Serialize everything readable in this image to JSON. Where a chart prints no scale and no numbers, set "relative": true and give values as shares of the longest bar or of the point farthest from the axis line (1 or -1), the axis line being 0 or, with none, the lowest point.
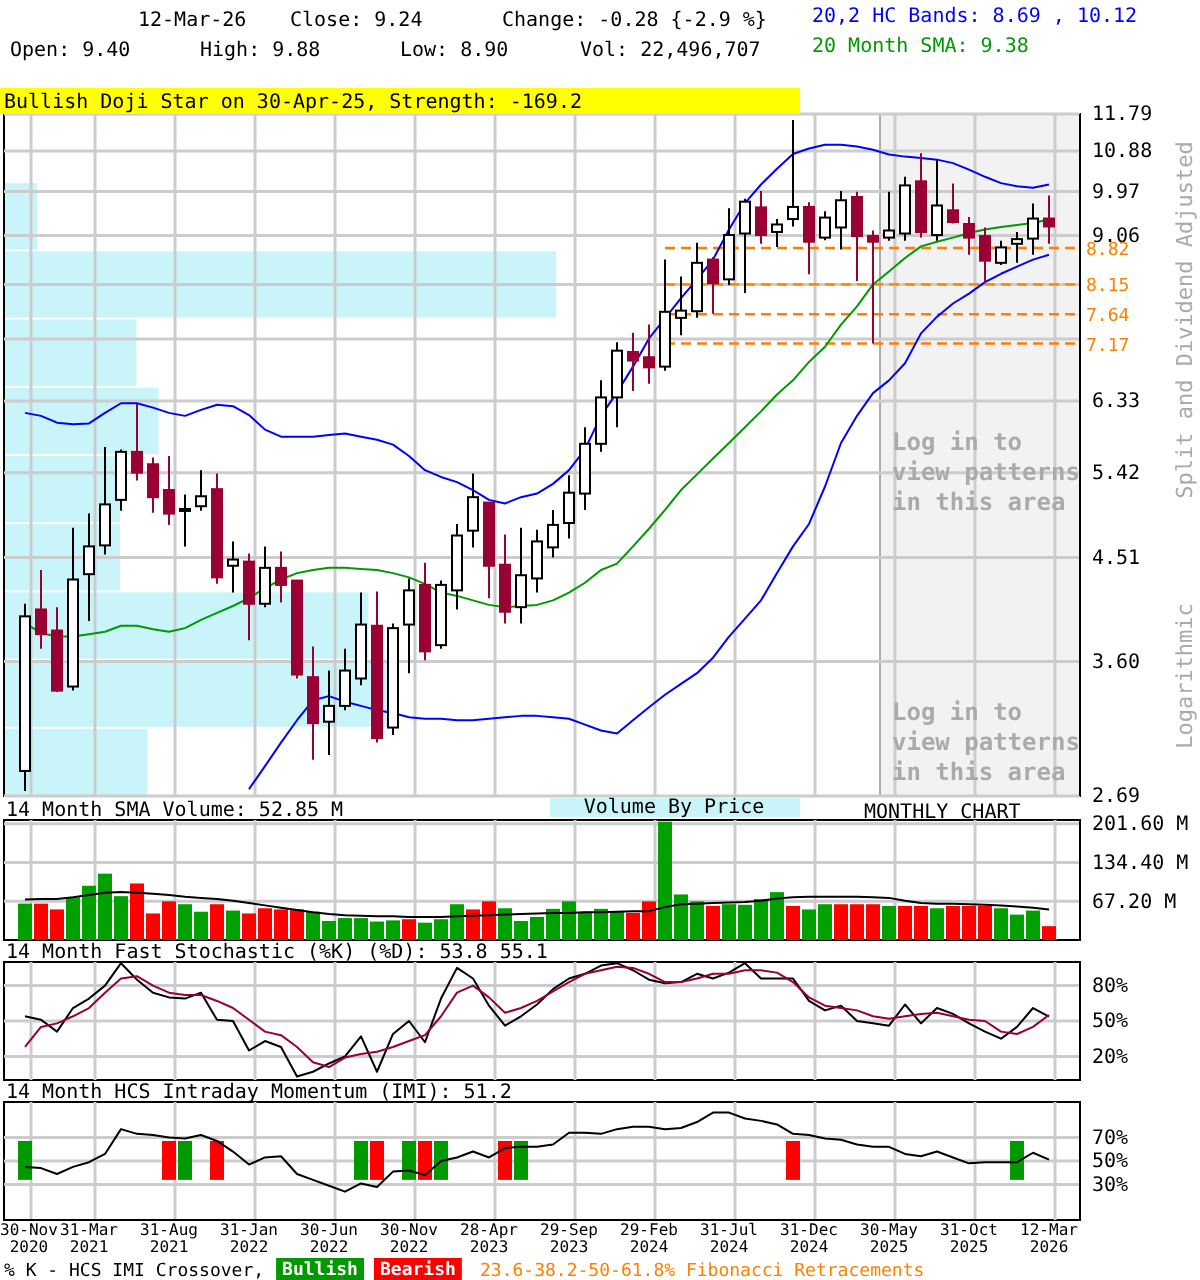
{
  "chart_data": [
    {
      "type": "candlestick",
      "log": true,
      "grid": true,
      "tick_labels": "y",
      "categories": [
        null,
        null,
        null,
        null,
        null,
        null,
        null,
        null,
        null,
        null,
        null,
        null,
        null,
        null,
        null,
        null,
        null,
        null,
        null,
        null,
        null,
        null,
        null,
        null,
        null,
        null,
        null,
        null,
        null,
        null,
        null,
        null,
        null,
        null,
        null,
        null,
        null,
        null,
        null,
        null,
        null,
        null,
        null,
        null,
        null,
        null,
        null,
        null,
        null,
        null,
        null,
        null,
        null,
        null,
        null,
        null,
        null,
        null,
        null,
        null,
        null,
        null,
        null,
        null,
        null
      ],
      "ylim": [
        2.69,
        11.79
      ],
      "yticks": [
        2.69,
        {
          "value": 3.6,
          "label": "3.60"
        },
        4.51,
        5.42,
        6.33,
        9.06,
        9.97,
        10.88,
        11.79,
        {
          "value": 8.15,
          "label": null
        },
        {
          "value": 7.24,
          "label": null
        }
      ],
      "ohlc": [
        [
          2.84,
          4.08,
          2.72,
          3.97
        ],
        [
          4.03,
          4.39,
          3.7,
          3.82
        ],
        [
          3.85,
          4.05,
          3.37,
          3.38
        ],
        [
          3.41,
          4.81,
          3.38,
          4.3
        ],
        [
          4.35,
          4.96,
          3.93,
          4.62
        ],
        [
          4.63,
          5.73,
          4.54,
          5.06
        ],
        [
          5.11,
          5.7,
          4.99,
          5.67
        ],
        [
          5.67,
          6.29,
          5.33,
          5.42
        ],
        [
          5.52,
          5.6,
          4.97,
          5.14
        ],
        [
          5.22,
          5.62,
          4.84,
          4.96
        ],
        [
          4.99,
          5.17,
          4.62,
          5.01
        ],
        [
          5.04,
          5.45,
          4.99,
          5.15
        ],
        [
          5.23,
          5.41,
          4.26,
          4.32
        ],
        [
          4.43,
          4.67,
          4.18,
          4.49
        ],
        [
          4.47,
          4.55,
          3.77,
          4.08
        ],
        [
          4.08,
          4.62,
          4.05,
          4.41
        ],
        [
          4.41,
          4.57,
          4.09,
          4.25
        ],
        [
          4.29,
          4.29,
          3.47,
          3.5
        ],
        [
          3.48,
          3.72,
          2.91,
          3.15
        ],
        [
          3.16,
          3.53,
          2.94,
          3.27
        ],
        [
          3.27,
          3.7,
          3.24,
          3.53
        ],
        [
          3.47,
          4.18,
          3.42,
          3.9
        ],
        [
          3.89,
          4.19,
          3.02,
          3.05
        ],
        [
          3.12,
          3.91,
          3.07,
          3.87
        ],
        [
          3.9,
          4.31,
          3.51,
          4.2
        ],
        [
          4.25,
          4.46,
          3.61,
          3.68
        ],
        [
          3.73,
          4.29,
          3.7,
          4.25
        ],
        [
          4.2,
          4.85,
          4.03,
          4.73
        ],
        [
          4.78,
          5.41,
          4.61,
          5.14
        ],
        [
          5.08,
          5.08,
          4.13,
          4.43
        ],
        [
          4.44,
          4.74,
          3.91,
          4.01
        ],
        [
          4.05,
          4.81,
          3.91,
          4.34
        ],
        [
          4.31,
          4.79,
          4.18,
          4.67
        ],
        [
          4.61,
          5.0,
          4.51,
          4.84
        ],
        [
          4.86,
          5.39,
          4.7,
          5.19
        ],
        [
          5.18,
          5.98,
          5.0,
          5.77
        ],
        [
          5.77,
          6.62,
          5.67,
          6.38
        ],
        [
          6.38,
          7.19,
          5.98,
          7.06
        ],
        [
          7.04,
          7.34,
          6.47,
          6.91
        ],
        [
          6.96,
          7.47,
          6.57,
          6.81
        ],
        [
          6.82,
          8.6,
          6.76,
          7.68
        ],
        [
          7.58,
          8.29,
          7.3,
          7.7
        ],
        [
          7.69,
          8.92,
          7.58,
          8.54
        ],
        [
          8.6,
          8.65,
          7.65,
          8.17
        ],
        [
          8.24,
          9.61,
          8.14,
          9.07
        ],
        [
          9.1,
          9.81,
          8.0,
          9.75
        ],
        [
          9.63,
          9.98,
          8.9,
          9.07
        ],
        [
          9.13,
          9.39,
          8.84,
          9.28
        ],
        [
          9.39,
          11.64,
          9.24,
          9.64
        ],
        [
          9.64,
          9.74,
          8.33,
          8.94
        ],
        [
          9.02,
          9.55,
          8.97,
          9.42
        ],
        [
          9.22,
          9.98,
          8.79,
          9.78
        ],
        [
          9.85,
          9.96,
          8.21,
          9.05
        ],
        [
          9.05,
          9.16,
          7.17,
          8.94
        ],
        [
          9.02,
          9.96,
          8.96,
          9.16
        ],
        [
          9.1,
          10.29,
          8.96,
          10.1
        ],
        [
          10.19,
          10.83,
          9.02,
          9.13
        ],
        [
          9.07,
          10.67,
          8.96,
          9.67
        ],
        [
          9.57,
          10.14,
          9.3,
          9.33
        ],
        [
          9.29,
          9.43,
          8.69,
          9.02
        ],
        [
          9.05,
          9.22,
          8.18,
          8.58
        ],
        [
          8.54,
          8.96,
          8.5,
          8.83
        ],
        [
          8.9,
          9.13,
          8.54,
          8.99
        ],
        [
          9.0,
          9.71,
          8.69,
          9.4
        ],
        [
          9.4,
          9.88,
          8.9,
          9.24
        ]
      ],
      "series": [
        {
          "type": "line",
          "color": "#0000ff",
          "values": [
            6.17,
            6.13,
            6.04,
            6.02,
            6.03,
            6.17,
            6.3,
            6.3,
            6.24,
            6.17,
            6.13,
            6.21,
            6.28,
            6.26,
            6.14,
            5.95,
            5.86,
            5.86,
            5.86,
            5.88,
            5.9,
            5.86,
            5.82,
            5.76,
            5.62,
            5.45,
            5.37,
            5.31,
            5.22,
            5.11,
            5.07,
            5.14,
            5.18,
            5.29,
            5.45,
            5.7,
            6.13,
            6.45,
            6.82,
            7.25,
            7.57,
            7.91,
            8.24,
            8.6,
            9.18,
            9.72,
            10.12,
            10.47,
            10.81,
            10.94,
            11.03,
            11.03,
            10.99,
            10.91,
            10.8,
            10.75,
            10.72,
            10.68,
            10.6,
            10.45,
            10.29,
            10.15,
            10.08,
            10.05,
            10.12
          ]
        },
        {
          "type": "line",
          "color": "#0000ff",
          "values": [
            null,
            null,
            null,
            null,
            null,
            null,
            null,
            null,
            null,
            null,
            null,
            null,
            null,
            null,
            2.73,
            2.87,
            3.02,
            3.17,
            3.31,
            3.34,
            3.3,
            3.27,
            3.24,
            3.22,
            3.19,
            3.18,
            3.18,
            3.17,
            3.17,
            3.18,
            3.19,
            3.2,
            3.2,
            3.19,
            3.18,
            3.14,
            3.1,
            3.08,
            3.17,
            3.26,
            3.35,
            3.43,
            3.51,
            3.63,
            3.8,
            3.95,
            4.11,
            4.36,
            4.62,
            4.85,
            5.26,
            5.78,
            6.13,
            6.44,
            6.62,
            6.87,
            7.33,
            7.6,
            7.82,
            7.99,
            8.19,
            8.34,
            8.47,
            8.6,
            8.69
          ]
        },
        {
          "type": "line",
          "color": "#009900",
          "values": [
            3.91,
            3.83,
            3.8,
            3.8,
            3.82,
            3.84,
            3.89,
            3.89,
            3.86,
            3.84,
            3.87,
            3.94,
            4.0,
            4.06,
            4.13,
            4.22,
            4.3,
            4.36,
            4.39,
            4.41,
            4.41,
            4.4,
            4.39,
            4.36,
            4.32,
            4.26,
            4.18,
            4.15,
            4.11,
            4.07,
            4.05,
            4.06,
            4.07,
            4.11,
            4.18,
            4.27,
            4.39,
            4.45,
            4.62,
            4.8,
            5.0,
            5.22,
            5.4,
            5.59,
            5.78,
            5.98,
            6.19,
            6.42,
            6.62,
            6.89,
            7.12,
            7.47,
            7.77,
            8.15,
            8.38,
            8.63,
            8.85,
            8.94,
            9.02,
            9.11,
            9.18,
            9.23,
            9.27,
            9.31,
            9.38
          ]
        }
      ],
      "ref_lines": [
        {
          "axis": "y",
          "value": 8.82,
          "label": "8.82",
          "color": "#ff8000",
          "line_style": "dashed"
        },
        {
          "axis": "y",
          "value": 8.15,
          "label": "8.15",
          "color": "#ff8000",
          "line_style": "dashed"
        },
        {
          "axis": "y",
          "value": 7.64,
          "label": "7.64",
          "color": "#ff8000",
          "line_style": "dashed"
        },
        {
          "axis": "y",
          "value": 7.17,
          "label": "7.17",
          "color": "#ff8000",
          "line_style": "dashed"
        }
      ],
      "annotations": [
        "12-Mar-26",
        "Close: 9.24",
        "Change: -0.28 {-2.9 %}",
        "Open: 9.40",
        "High: 9.88",
        "Low: 8.90",
        "Vol: 22,496,707",
        "20,2 HC Bands: 8.69 , 10.12",
        "20 Month SMA: 9.38",
        "Bullish Doji Star on 30-Apr-25, Strength: -169.2",
        "Log in to view patterns in this area",
        "Log in to view patterns in this area",
        "Split and Dividend Adjusted",
        "Logarithmic",
        "MONTHLY CHART",
        "23.6-38.2-50-61.8% Fibonacci Retracements",
        "Volume By Price"
      ]
    },
    {
      "type": "bar",
      "orientation": "horizontal",
      "relative": true,
      "color": "#c8f4fa",
      "categories": [
        null,
        null,
        null,
        null,
        null,
        null,
        null,
        null,
        null
      ],
      "values": [
        0.06,
        1,
        0.24,
        0.28,
        0.21,
        0.21,
        0.66,
        0.7,
        0.26
      ]
    },
    {
      "type": "bar",
      "title": "14 Month SMA Volume: 52.85 M",
      "grid": true,
      "tick_labels": "y",
      "categories": [
        null,
        null,
        null,
        null,
        null,
        null,
        null,
        null,
        null,
        null,
        null,
        null,
        null,
        null,
        null,
        null,
        null,
        null,
        null,
        null,
        null,
        null,
        null,
        null,
        null,
        null,
        null,
        null,
        null,
        null,
        null,
        null,
        null,
        null,
        null,
        null,
        null,
        null,
        null,
        null,
        null,
        null,
        null,
        null,
        null,
        null,
        null,
        null,
        null,
        null,
        null,
        null,
        null,
        null,
        null,
        null,
        null,
        null,
        null,
        null,
        null,
        null,
        null,
        null,
        null
      ],
      "ylim": [
        0,
        208
      ],
      "yticks": [
        {
          "value": 67.2,
          "label": "67.20 M"
        },
        {
          "value": 134.4,
          "label": "134.40 M"
        },
        {
          "value": 201.6,
          "label": "201.60 M"
        }
      ],
      "series": [
        {
          "type": "bar",
          "values": [
            63,
            63,
            53,
            74,
            94,
            115,
            76,
            98,
            46,
            67,
            62,
            49,
            62,
            51,
            46,
            55,
            53,
            53,
            49,
            33,
            38,
            38,
            32,
            34,
            36,
            30,
            36,
            62,
            53,
            67,
            55,
            33,
            40,
            54,
            67,
            49,
            54,
            49,
            47,
            67,
            205,
            79,
            67,
            59,
            62,
            61,
            71,
            83,
            59,
            53,
            62,
            62,
            62,
            62,
            59,
            59,
            59,
            55,
            59,
            59,
            59,
            55,
            44,
            51,
            24
          ],
          "colors": [
            "#00a000",
            "#ff0000",
            "#ff0000",
            "#00a000",
            "#00a000",
            "#00a000",
            "#00a000",
            "#ff0000",
            "#ff0000",
            "#ff0000",
            "#00a000",
            "#00a000",
            "#ff0000",
            "#00a000",
            "#ff0000",
            "#ff0000",
            "#ff0000",
            "#ff0000",
            "#00a000",
            "#00a000",
            "#00a000",
            "#00a000",
            "#00a000",
            "#00a000",
            "#ff0000",
            "#00a000",
            "#00a000",
            "#00a000",
            "#ff0000",
            "#ff0000",
            "#00a000",
            "#00a000",
            "#00a000",
            "#00a000",
            "#00a000",
            "#00a000",
            "#00a000",
            "#00a000",
            "#ff0000",
            "#ff0000",
            "#00a000",
            "#00a000",
            "#00a000",
            "#ff0000",
            "#00a000",
            "#00a000",
            "#00a000",
            "#00a000",
            "#ff0000",
            "#00a000",
            "#00a000",
            "#ff0000",
            "#ff0000",
            "#ff0000",
            "#00a000",
            "#ff0000",
            "#ff0000",
            "#00a000",
            "#ff0000",
            "#ff0000",
            "#ff0000",
            "#00a000",
            "#00a000",
            "#00a000",
            "#ff0000"
          ]
        },
        {
          "type": "line",
          "color": "#000000",
          "values": [
            70,
            71,
            71,
            74,
            78,
            82,
            83,
            82,
            80,
            78,
            75,
            73,
            71,
            68,
            64,
            60,
            56,
            52,
            48,
            45,
            43,
            42,
            41,
            41,
            40,
            40,
            40,
            41,
            42,
            43,
            44,
            45,
            46,
            47,
            47,
            48,
            48,
            49,
            50,
            50,
            57,
            62,
            63,
            64,
            65,
            66,
            68,
            72,
            74,
            75,
            75,
            75,
            75,
            74,
            73,
            68,
            64,
            63,
            63,
            62,
            61,
            60,
            58,
            56,
            52.85
          ]
        }
      ]
    },
    {
      "type": "line",
      "title": "14 Month Fast Stochastic (%K) (%D): 53.8  55.1",
      "grid": true,
      "tick_labels": "y",
      "categories": [
        null,
        null,
        null,
        null,
        null,
        null,
        null,
        null,
        null,
        null,
        null,
        null,
        null,
        null,
        null,
        null,
        null,
        null,
        null,
        null,
        null,
        null,
        null,
        null,
        null,
        null,
        null,
        null,
        null,
        null,
        null,
        null,
        null,
        null,
        null,
        null,
        null,
        null,
        null,
        null,
        null,
        null,
        null,
        null,
        null,
        null,
        null,
        null,
        null,
        null,
        null,
        null,
        null,
        null,
        null,
        null,
        null,
        null,
        null,
        null,
        null,
        null,
        null,
        null,
        null
      ],
      "ylim": [
        0,
        100
      ],
      "yticks": [
        {
          "value": 20,
          "label": "20%"
        },
        {
          "value": 50,
          "label": "50%"
        },
        {
          "value": 80,
          "label": "80%"
        }
      ],
      "series": [
        {
          "color": "#000000",
          "values": [
            54,
            51,
            41,
            61,
            69,
            80,
            99,
            85,
            74,
            70,
            69,
            74,
            51,
            50,
            25,
            33,
            28,
            3,
            7,
            14,
            20,
            37,
            7,
            39,
            50,
            32,
            69,
            95,
            86,
            63,
            46,
            54,
            64,
            77,
            86,
            90,
            97,
            99,
            93,
            85,
            82,
            83,
            90,
            86,
            91,
            99,
            86,
            86,
            86,
            67,
            59,
            63,
            50,
            48,
            46,
            64,
            48,
            61,
            56,
            48,
            41,
            35,
            45,
            61,
            53.8
          ]
        },
        {
          "color": "#990033",
          "values": [
            28,
            45,
            48,
            54,
            61,
            74,
            86,
            88,
            80,
            74,
            72,
            72,
            67,
            61,
            51,
            41,
            38,
            28,
            15,
            11,
            19,
            22,
            24,
            28,
            33,
            38,
            54,
            74,
            80,
            70,
            57,
            61,
            67,
            75,
            83,
            90,
            93,
            96,
            95,
            90,
            83,
            83,
            86,
            90,
            90,
            93,
            93,
            91,
            83,
            70,
            63,
            61,
            59,
            54,
            52,
            54,
            56,
            57,
            54,
            51,
            50,
            41,
            39,
            45,
            55.1
          ]
        }
      ]
    },
    {
      "type": "line",
      "title": "14 Month HCS Intraday Momentum (IMI): 51.2",
      "grid": true,
      "legend": "bottom",
      "legend_title": "% K - HCS IMI Crossover,",
      "categories": [
        "30-Nov 2020",
        null,
        null,
        null,
        "31-Mar 2021",
        null,
        null,
        null,
        null,
        "31-Aug 2021",
        null,
        null,
        null,
        null,
        "31-Jan 2022",
        null,
        null,
        null,
        null,
        "30-Jun 2022",
        null,
        null,
        null,
        null,
        "30-Nov 2022",
        null,
        null,
        null,
        null,
        "28-Apr 2023",
        null,
        null,
        null,
        null,
        "29-Sep 2023",
        null,
        null,
        null,
        null,
        "29-Feb 2024",
        null,
        null,
        null,
        null,
        "31-Jul 2024",
        null,
        null,
        null,
        null,
        "31-Dec 2024",
        null,
        null,
        null,
        null,
        "30-May 2025",
        null,
        null,
        null,
        null,
        "31-Oct 2025",
        null,
        null,
        null,
        null,
        "12-Mar 2026"
      ],
      "ylim": [
        0,
        100
      ],
      "yticks": [
        {
          "value": 30,
          "label": "30%"
        },
        {
          "value": 50,
          "label": "50%"
        },
        {
          "value": 70,
          "label": "70%"
        }
      ],
      "series": [
        {
          "type": "line",
          "color": "#000000",
          "values": [
            45,
            44,
            39,
            45,
            49,
            56,
            77,
            73,
            72,
            70,
            69,
            72,
            67,
            58,
            47,
            53,
            54,
            39,
            34,
            29,
            24,
            31,
            28,
            41,
            42,
            38,
            50,
            53,
            58,
            53,
            61,
            62,
            62,
            64,
            74,
            74,
            73,
            77,
            79,
            79,
            77,
            78,
            83,
            91,
            91,
            86,
            84,
            81,
            73,
            72,
            69,
            68,
            64,
            62,
            62,
            56,
            54,
            58,
            53,
            48,
            49,
            49,
            49,
            57,
            51.2
          ]
        },
        {
          "type": "bar",
          "name": "Bullish",
          "color": "#009900",
          "base": [
            34,
            null,
            null,
            null,
            null,
            null,
            null,
            null,
            null,
            null,
            34,
            null,
            null,
            null,
            null,
            null,
            null,
            null,
            null,
            null,
            null,
            34,
            null,
            null,
            34,
            null,
            34,
            null,
            null,
            null,
            null,
            34,
            null,
            null,
            null,
            null,
            null,
            null,
            null,
            null,
            null,
            null,
            null,
            null,
            null,
            null,
            null,
            null,
            null,
            null,
            null,
            null,
            null,
            null,
            null,
            null,
            null,
            null,
            null,
            null,
            null,
            null,
            34,
            null,
            null
          ],
          "values": [
            33,
            null,
            null,
            null,
            null,
            null,
            null,
            null,
            null,
            null,
            33,
            null,
            null,
            null,
            null,
            null,
            null,
            null,
            null,
            null,
            null,
            33,
            null,
            null,
            33,
            null,
            33,
            null,
            null,
            null,
            null,
            33,
            null,
            null,
            null,
            null,
            null,
            null,
            null,
            null,
            null,
            null,
            null,
            null,
            null,
            null,
            null,
            null,
            null,
            null,
            null,
            null,
            null,
            null,
            null,
            null,
            null,
            null,
            null,
            null,
            null,
            null,
            33,
            null,
            null
          ]
        },
        {
          "type": "bar",
          "name": "Bearish",
          "color": "#ff0000",
          "base": [
            null,
            null,
            null,
            null,
            null,
            null,
            null,
            null,
            null,
            34,
            null,
            null,
            34,
            null,
            null,
            null,
            null,
            null,
            null,
            null,
            null,
            null,
            34,
            null,
            null,
            34,
            null,
            null,
            null,
            null,
            34,
            null,
            null,
            null,
            null,
            null,
            null,
            null,
            null,
            null,
            null,
            null,
            null,
            null,
            null,
            null,
            null,
            null,
            34,
            null,
            null,
            null,
            null,
            null,
            null,
            null,
            null,
            null,
            null,
            null,
            null,
            null,
            null,
            null,
            null
          ],
          "values": [
            null,
            null,
            null,
            null,
            null,
            null,
            null,
            null,
            null,
            33,
            null,
            null,
            33,
            null,
            null,
            null,
            null,
            null,
            null,
            null,
            null,
            null,
            33,
            null,
            null,
            33,
            null,
            null,
            null,
            null,
            33,
            null,
            null,
            null,
            null,
            null,
            null,
            null,
            null,
            null,
            null,
            null,
            null,
            null,
            null,
            null,
            null,
            null,
            33,
            null,
            null,
            null,
            null,
            null,
            null,
            null,
            null,
            null,
            null,
            null,
            null,
            null,
            null,
            null,
            null
          ]
        }
      ]
    }
  ]
}
